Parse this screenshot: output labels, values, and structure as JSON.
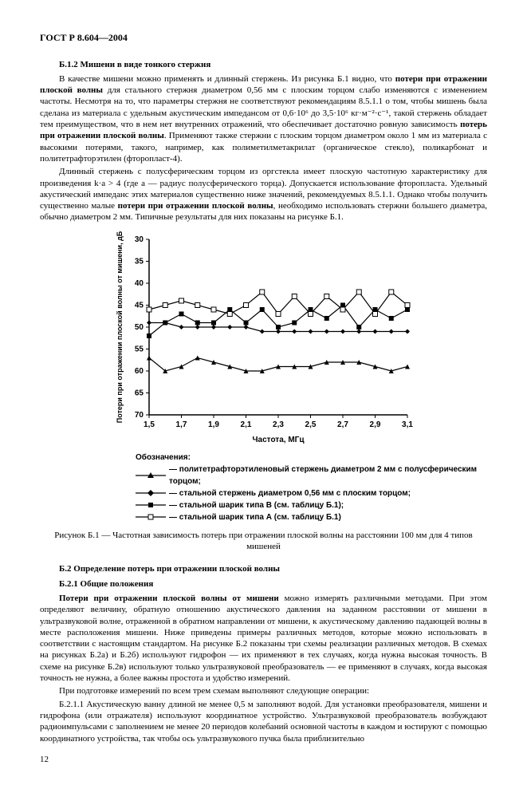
{
  "header": "ГОСТ Р 8.604—2004",
  "section_b12_title": "Б.1.2 Мишени в виде тонкого стержня",
  "para1": "В качестве мишени можно применять и длинный стержень. Из рисунка Б.1 видно, что потери при отражении плоской волны для стального стержня диаметром 0,56 мм с плоским торцом слабо изменяются с изменением частоты. Несмотря на то, что параметры стержня не соответствуют рекомендациям 8.5.1.1 о том, чтобы мишень была сделана из материала с удельным акустическим импедансом от 0,6·10⁶ до 3,5·10⁶ кг·м⁻²·с⁻¹, такой стержень обладает тем преимуществом, что в нем нет внутренних отражений, что обеспечивает достаточно ровную зависимость потерь при отражении плоской волны. Применяют также стержни с плоским торцом диаметром около 1 мм из материала с высокими потерями, такого, например, как полиметилметакрилат (органическое стекло), поликарбонат и политетрафторэтилен (фторопласт-4).",
  "para2": "Длинный стержень с полусферическим торцом из оргстекла имеет плоскую частотную характеристику для произведения k·a > 4 (где a — радиус полусферического торца). Допускается использование фторопласта. Удельный акустический импеданс этих материалов существенно ниже значений, рекомендуемых 8.5.1.1. Однако чтобы получить существенно малые потери при отражении плоской волны, необходимо использовать стержни большего диаметра, обычно диаметром 2 мм. Типичные результаты для них показаны на рисунке Б.1.",
  "chart": {
    "type": "line",
    "xlabel": "Частота, МГц",
    "ylabel": "Потери при отражении плоской волны от мишени, дБ",
    "xlim": [
      1.5,
      3.1
    ],
    "ylim": [
      70,
      30
    ],
    "xticks": [
      1.5,
      1.7,
      1.9,
      2.1,
      2.3,
      2.5,
      2.7,
      2.9,
      3.1
    ],
    "yticks": [
      30,
      35,
      40,
      45,
      50,
      55,
      60,
      65,
      70
    ],
    "background_color": "#ffffff",
    "axis_color": "#000000",
    "label_font": "Arial",
    "label_fontsize": 10,
    "series": [
      {
        "name": "series-a-triangle",
        "marker": "triangle",
        "x": [
          1.5,
          1.6,
          1.7,
          1.8,
          1.9,
          2.0,
          2.1,
          2.2,
          2.3,
          2.4,
          2.5,
          2.6,
          2.7,
          2.8,
          2.9,
          3.0,
          3.1
        ],
        "y": [
          57,
          60,
          59,
          57,
          58,
          59,
          60,
          60,
          59,
          59,
          59,
          58,
          58,
          58,
          59,
          60,
          59
        ],
        "color": "#000000"
      },
      {
        "name": "series-b-diamond",
        "marker": "diamond",
        "x": [
          1.5,
          1.6,
          1.7,
          1.8,
          1.9,
          2.0,
          2.1,
          2.2,
          2.3,
          2.4,
          2.5,
          2.6,
          2.7,
          2.8,
          2.9,
          3.0,
          3.1
        ],
        "y": [
          49,
          49,
          50,
          50,
          50,
          50,
          50,
          51,
          51,
          51,
          51,
          51,
          51,
          51,
          51,
          51,
          51
        ],
        "color": "#000000"
      },
      {
        "name": "series-c-square-filled",
        "marker": "square-filled",
        "x": [
          1.5,
          1.6,
          1.7,
          1.8,
          1.9,
          2.0,
          2.1,
          2.2,
          2.3,
          2.4,
          2.5,
          2.6,
          2.7,
          2.8,
          2.9,
          3.0,
          3.1
        ],
        "y": [
          52,
          49,
          47,
          49,
          49,
          46,
          49,
          46,
          50,
          49,
          46,
          48,
          45,
          50,
          46,
          48,
          46
        ],
        "color": "#000000"
      },
      {
        "name": "series-d-square-open",
        "marker": "square-open",
        "x": [
          1.5,
          1.6,
          1.7,
          1.8,
          1.9,
          2.0,
          2.1,
          2.2,
          2.3,
          2.4,
          2.5,
          2.6,
          2.7,
          2.8,
          2.9,
          3.0,
          3.1
        ],
        "y": [
          46,
          45,
          44,
          45,
          46,
          47,
          45,
          42,
          47,
          43,
          47,
          43,
          46,
          42,
          47,
          42,
          45
        ],
        "color": "#000000"
      }
    ]
  },
  "legend_header": "Обозначения:",
  "legend": [
    "— политетрафторэтиленовый стержень диаметром 2 мм с полусферическим торцом;",
    "— стальной стержень диаметром 0,56 мм с плоским торцом;",
    "— стальной шарик типа В (см. таблицу Б.1);",
    "— стальной шарик типа А (см. таблицу Б.1)"
  ],
  "figure_caption": "Рисунок Б.1 — Частотная зависимость потерь при отражении плоской волны на расстоянии 100 мм для 4 типов мишеней",
  "section_b2_title": "Б.2 Определение потерь при отражении плоской волны",
  "section_b21_title": "Б.2.1 Общие положения",
  "para3": "Потери при отражении плоской волны от мишени можно измерять различными методами. При этом определяют величину, обратную отношению акустического давления на заданном расстоянии от мишени в ультразвуковой волне, отраженной в обратном направлении от мишени, к акустическому давлению падающей волны в месте расположения мишени. Ниже приведены примеры различных методов, которые можно использовать в соответствии с настоящим стандартом. На рисунке Б.2 показаны три схемы реализации различных методов. В схемах на рисунках Б.2а) и Б.2б) используют гидрофон — их применяют в тех случаях, когда нужна высокая точность. В схеме на рисунке Б.2в) используют только ультразвуковой преобразователь — ее применяют в случаях, когда высокая точность не нужна, а более важны простота и удобство измерений.",
  "para4": "При подготовке измерений по всем трем схемам выполняют следующие операции:",
  "para5": "Б.2.1.1 Акустическую ванну длиной не менее 0,5 м заполняют водой. Для установки преобразователя, мишени и гидрофона (или отражателя) используют координатное устройство. Ультразвуковой преобразователь возбуждают радиоимпульсами с заполнением не менее 20 периодов колебаний основной частоты в каждом и юстируют с помощью координатного устройства, так чтобы ось ультразвукового пучка была приблизительно",
  "page_number": "12"
}
